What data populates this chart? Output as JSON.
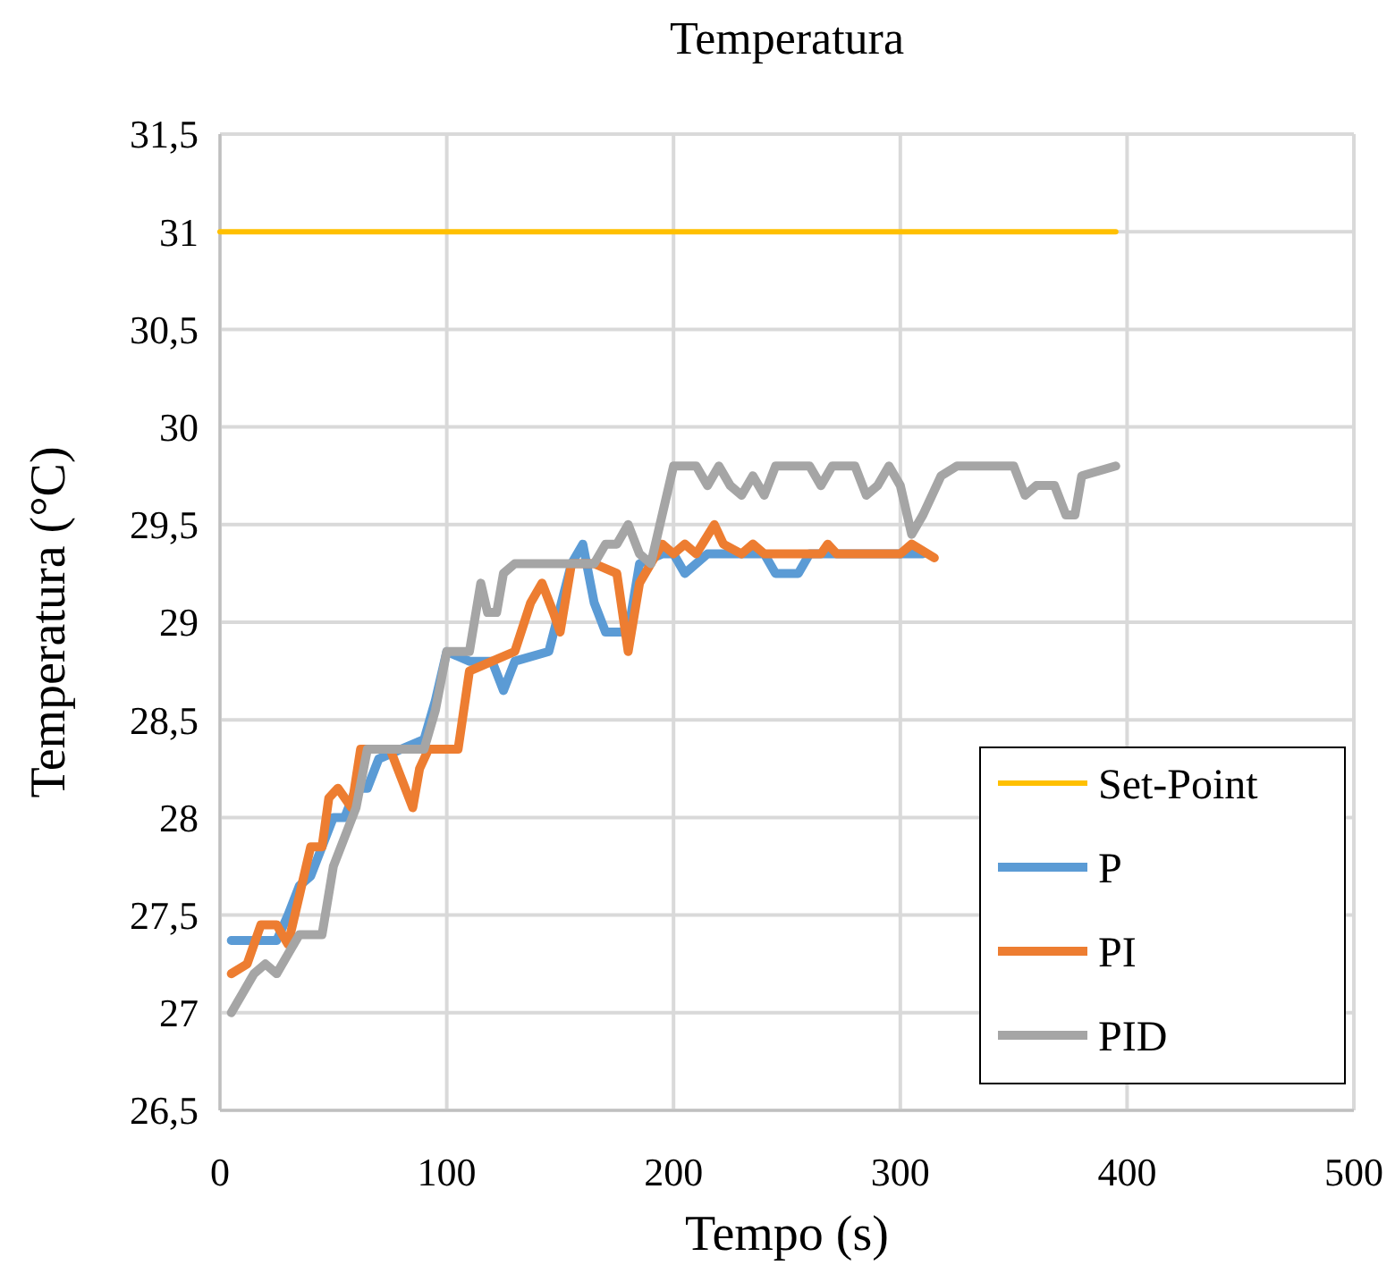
{
  "chart_data": {
    "type": "line",
    "title": "Temperatura",
    "xlabel": "Tempo (s)",
    "ylabel": "Temperatura (°C)",
    "xlim": [
      0,
      500
    ],
    "xticks": [
      0,
      100,
      200,
      300,
      400,
      500
    ],
    "ylim": [
      26.5,
      31.5
    ],
    "yticks": [
      {
        "value": 26.5,
        "label": "26,5"
      },
      27,
      {
        "value": 27.5,
        "label": "27,5"
      },
      28,
      {
        "value": 28.5,
        "label": "28,5"
      },
      29,
      {
        "value": 29.5,
        "label": "29,5"
      },
      30,
      {
        "value": 30.5,
        "label": "30,5"
      },
      31,
      {
        "value": 31.5,
        "label": "31,5"
      }
    ],
    "grid": true,
    "legend": "bottom right",
    "marker": "none",
    "line_style": "solid",
    "series": [
      {
        "name": "Set-Point",
        "color": "#ffc000",
        "x": [
          0,
          395
        ],
        "values": [
          31,
          31
        ]
      },
      {
        "name": "P",
        "color": "#5b9bd5",
        "x": [
          5,
          25,
          30,
          35,
          40,
          45,
          50,
          55,
          60,
          65,
          70,
          80,
          90,
          95,
          100,
          110,
          120,
          125,
          130,
          145,
          155,
          160,
          165,
          170,
          180,
          185,
          195,
          200,
          205,
          215,
          240,
          245,
          255,
          260,
          310
        ],
        "values": [
          27.37,
          27.37,
          27.5,
          27.65,
          27.7,
          27.85,
          28.0,
          28.0,
          28.15,
          28.15,
          28.3,
          28.35,
          28.4,
          28.6,
          28.85,
          28.8,
          28.8,
          28.65,
          28.8,
          28.85,
          29.3,
          29.4,
          29.1,
          28.95,
          28.95,
          29.3,
          29.35,
          29.35,
          29.25,
          29.35,
          29.35,
          29.25,
          29.25,
          29.35,
          29.35
        ]
      },
      {
        "name": "PI",
        "color": "#ed7d31",
        "x": [
          5,
          12,
          18,
          25,
          30,
          35,
          40,
          45,
          48,
          52,
          58,
          62,
          75,
          80,
          85,
          88,
          92,
          105,
          110,
          120,
          130,
          137,
          142,
          147,
          150,
          155,
          165,
          175,
          180,
          185,
          190,
          195,
          200,
          205,
          210,
          218,
          222,
          230,
          235,
          240,
          265,
          268,
          272,
          300,
          305,
          315
        ],
        "values": [
          27.2,
          27.25,
          27.45,
          27.45,
          27.35,
          27.6,
          27.85,
          27.85,
          28.1,
          28.15,
          28.05,
          28.35,
          28.35,
          28.2,
          28.05,
          28.25,
          28.35,
          28.35,
          28.75,
          28.8,
          28.85,
          29.1,
          29.2,
          29.05,
          28.95,
          29.3,
          29.3,
          29.25,
          28.85,
          29.2,
          29.3,
          29.4,
          29.35,
          29.4,
          29.35,
          29.5,
          29.4,
          29.35,
          29.4,
          29.35,
          29.35,
          29.4,
          29.35,
          29.35,
          29.4,
          29.33
        ]
      },
      {
        "name": "PID",
        "color": "#a5a5a5",
        "x": [
          5,
          10,
          15,
          20,
          25,
          30,
          35,
          45,
          50,
          55,
          60,
          65,
          90,
          95,
          100,
          110,
          115,
          118,
          122,
          125,
          130,
          165,
          170,
          175,
          180,
          185,
          190,
          195,
          200,
          210,
          215,
          220,
          225,
          230,
          235,
          240,
          245,
          260,
          265,
          270,
          280,
          285,
          290,
          295,
          300,
          305,
          310,
          318,
          325,
          350,
          355,
          360,
          368,
          373,
          377,
          380,
          395
        ],
        "values": [
          27.0,
          27.1,
          27.2,
          27.25,
          27.2,
          27.3,
          27.4,
          27.4,
          27.75,
          27.9,
          28.05,
          28.35,
          28.35,
          28.55,
          28.85,
          28.85,
          29.2,
          29.05,
          29.05,
          29.25,
          29.3,
          29.3,
          29.4,
          29.4,
          29.5,
          29.35,
          29.3,
          29.55,
          29.8,
          29.8,
          29.7,
          29.8,
          29.7,
          29.65,
          29.75,
          29.65,
          29.8,
          29.8,
          29.7,
          29.8,
          29.8,
          29.65,
          29.7,
          29.8,
          29.7,
          29.45,
          29.55,
          29.75,
          29.8,
          29.8,
          29.65,
          29.7,
          29.7,
          29.55,
          29.55,
          29.75,
          29.8
        ]
      }
    ]
  }
}
